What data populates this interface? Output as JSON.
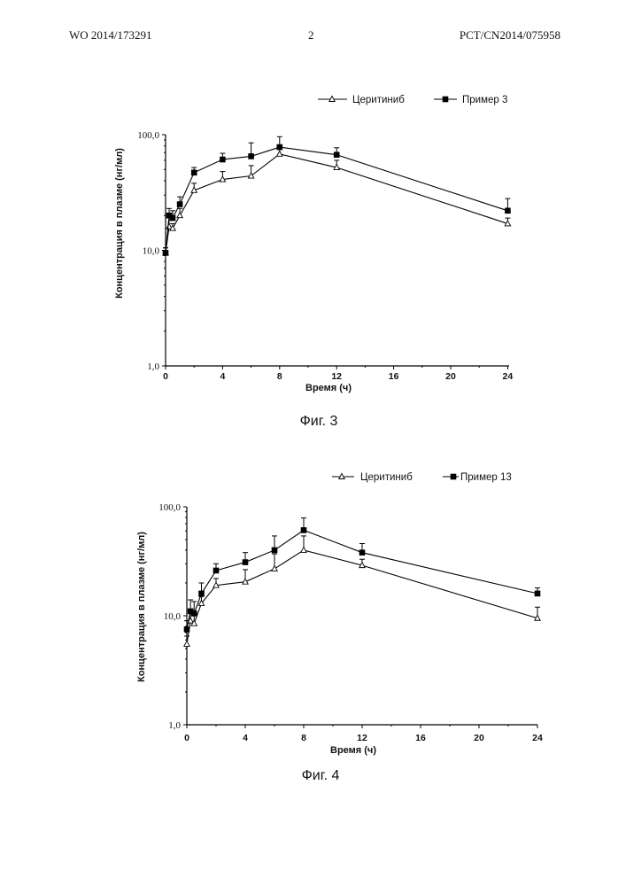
{
  "header": {
    "left": "WO 2014/173291",
    "center": "2",
    "right": "PCT/CN2014/075958"
  },
  "chart_data": [
    {
      "type": "line",
      "caption": "Фиг. 3",
      "xlabel": "Время (ч)",
      "ylabel": "Концентрация в плазме (нг/мл)",
      "yscale": "log",
      "ylim": [
        1,
        100
      ],
      "xlim": [
        0,
        25
      ],
      "xticks": [
        0,
        4,
        8,
        12,
        16,
        20,
        24
      ],
      "yticks": [
        "1,0",
        "10,0",
        "100,0"
      ],
      "legend_position": "top-right",
      "series": [
        {
          "name": "Церитиниб",
          "marker": "open-triangle",
          "x": [
            0,
            0.25,
            0.5,
            1,
            2,
            4,
            6,
            8,
            12,
            24
          ],
          "y": [
            9.5,
            16,
            15.5,
            20,
            33,
            41,
            44,
            68,
            52,
            17
          ],
          "err": [
            1,
            4,
            1.5,
            3,
            5,
            7,
            10,
            12,
            8,
            2
          ]
        },
        {
          "name": "Пример 3",
          "marker": "filled-square",
          "x": [
            0,
            0.25,
            0.5,
            1,
            2,
            4,
            6,
            8,
            12,
            24
          ],
          "y": [
            9.5,
            20,
            19,
            25,
            47,
            61,
            65,
            78,
            67,
            22
          ],
          "err": [
            1,
            3,
            3,
            4,
            5,
            8,
            20,
            18,
            10,
            6
          ]
        }
      ]
    },
    {
      "type": "line",
      "caption": "Фиг. 4",
      "xlabel": "Время (ч)",
      "ylabel": "Концентрация в плазме (нг/мл)",
      "yscale": "log",
      "ylim": [
        1,
        100
      ],
      "xlim": [
        0,
        24
      ],
      "xticks": [
        0,
        4,
        8,
        12,
        16,
        20,
        24
      ],
      "yticks": [
        "1,0",
        "10,0",
        "100,0"
      ],
      "legend_position": "top-right",
      "series": [
        {
          "name": "Церитиниб",
          "marker": "open-triangle",
          "x": [
            0,
            0.25,
            0.5,
            1,
            2,
            4,
            6,
            8,
            12,
            24
          ],
          "y": [
            5.5,
            9,
            8.5,
            13,
            19,
            20.5,
            27,
            40,
            29,
            9.5
          ],
          "err": [
            1,
            2,
            1.5,
            2,
            3,
            6,
            10,
            14,
            4,
            2.5
          ]
        },
        {
          "name": "Пример 13",
          "marker": "filled-square",
          "x": [
            0,
            0.25,
            0.5,
            1,
            2,
            4,
            6,
            8,
            12,
            24
          ],
          "y": [
            7.5,
            11,
            10.5,
            16,
            26,
            31,
            40,
            61,
            38,
            16
          ],
          "err": [
            1.5,
            3,
            3,
            4,
            4,
            7,
            14,
            18,
            8,
            2
          ]
        }
      ]
    }
  ]
}
